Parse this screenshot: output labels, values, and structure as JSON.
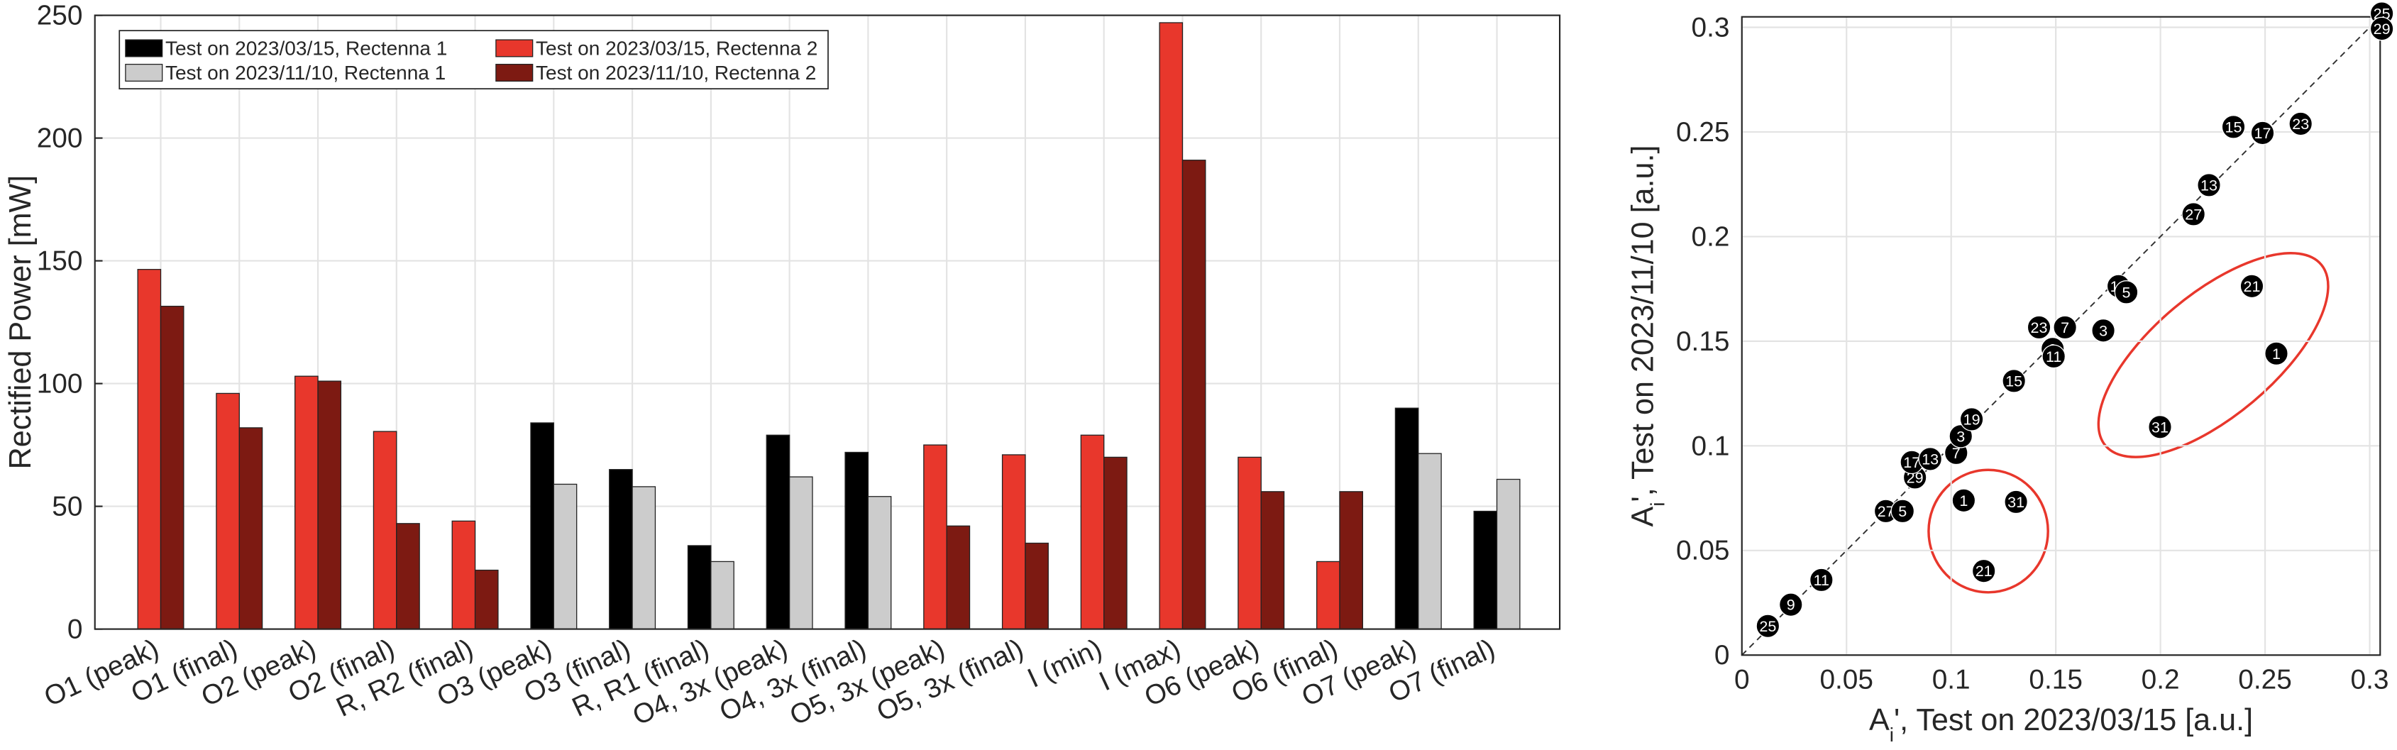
{
  "chart_data": [
    {
      "type": "bar",
      "ylabel": "Rectified Power [mW]",
      "categories": [
        "O1 (peak)",
        "O1 (final)",
        "O2 (peak)",
        "O2 (final)",
        "R, R2 (final)",
        "O3 (peak)",
        "O3 (final)",
        "R, R1 (final)",
        "O4, 3x (peak)",
        "O4, 3x (final)",
        "O5, 3x (peak)",
        "O5, 3x (final)",
        "I (min)",
        "I (max)",
        "O6 (peak)",
        "O6 (final)",
        "O7 (peak)",
        "O7 (final)"
      ],
      "series": [
        {
          "name": "Test on 2023/03/15, Rectenna 1",
          "color": "#000000",
          "values": [
            null,
            null,
            null,
            null,
            null,
            84,
            65,
            34,
            79,
            72,
            null,
            null,
            null,
            null,
            null,
            null,
            90,
            48
          ]
        },
        {
          "name": "Test on 2023/11/10, Rectenna 1",
          "color": "#cccccc",
          "values": [
            null,
            null,
            null,
            null,
            null,
            59,
            58,
            27.5,
            62,
            54,
            null,
            null,
            null,
            null,
            null,
            null,
            71.5,
            61
          ]
        },
        {
          "name": "Test on 2023/03/15, Rectenna 2",
          "color": "#e8372c",
          "values": [
            146.5,
            96,
            103,
            80.5,
            44,
            null,
            null,
            null,
            null,
            null,
            75,
            71,
            79,
            247,
            70,
            27.5,
            null,
            null
          ]
        },
        {
          "name": "Test on 2023/11/10, Rectenna 2",
          "color": "#7d1a12",
          "values": [
            131.5,
            82,
            101,
            43,
            24,
            null,
            null,
            null,
            null,
            null,
            42,
            35,
            70,
            191,
            56,
            56,
            null,
            null
          ]
        }
      ],
      "ylim": [
        0,
        250
      ],
      "yticks": [
        0,
        50,
        100,
        150,
        200,
        250
      ],
      "grid": true,
      "legend": "upper-left"
    },
    {
      "type": "scatter",
      "xlabel_parts": [
        "A",
        "i",
        "', Test on 2023/03/15 [a.u.]"
      ],
      "ylabel_parts": [
        "A",
        "i",
        "', Test on 2023/11/10 [a.u.]"
      ],
      "points": {
        "color": "#000000",
        "x": [
          0.0124,
          0.0234,
          0.038,
          0.0688,
          0.0768,
          0.0827,
          0.0812,
          0.09,
          0.1024,
          0.1046,
          0.1098,
          0.106,
          0.131,
          0.1156,
          0.13,
          0.1485,
          0.149,
          0.142,
          0.1544,
          0.1727,
          0.18,
          0.1837,
          0.2158,
          0.2232,
          0.2349,
          0.2488,
          0.267,
          0.2437,
          0.2554,
          0.1998,
          0.3058,
          0.3058
        ],
        "y": [
          0.0139,
          0.0241,
          0.0359,
          0.0688,
          0.0688,
          0.0849,
          0.0922,
          0.0937,
          0.0966,
          0.1046,
          0.1127,
          0.0739,
          0.0732,
          0.0402,
          0.131,
          0.1463,
          0.1427,
          0.1566,
          0.1566,
          0.1551,
          0.1763,
          0.1734,
          0.2107,
          0.2246,
          0.2524,
          0.2495,
          0.2539,
          0.1763,
          0.1441,
          0.109,
          0.3066,
          0.2993
        ],
        "labels": [
          25,
          9,
          11,
          27,
          5,
          29,
          17,
          13,
          7,
          3,
          19,
          1,
          31,
          21,
          15,
          9,
          11,
          23,
          7,
          3,
          19,
          5,
          27,
          13,
          15,
          17,
          23,
          21,
          1,
          31,
          25,
          29
        ]
      },
      "xlim": [
        0,
        0.305
      ],
      "ylim": [
        0,
        0.305
      ],
      "xticks": [
        0,
        0.05,
        0.1,
        0.15,
        0.2,
        0.25,
        0.3
      ],
      "yticks": [
        0,
        0.05,
        0.1,
        0.15,
        0.2,
        0.25,
        0.3
      ],
      "grid": true
    }
  ]
}
